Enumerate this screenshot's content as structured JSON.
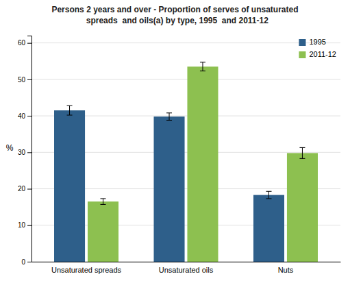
{
  "chart_data": {
    "type": "bar",
    "title": "Persons 2 years and over - Proportion of serves of unsaturated\n  spreads  and oils(a) by type, 1995  and 2011-12",
    "categories": [
      "Unsaturated spreads",
      "Unsaturated oils",
      "Nuts"
    ],
    "series": [
      {
        "name": "1995",
        "color": "#2E5F8A",
        "values": [
          41.5,
          39.8,
          18.3
        ],
        "errors": [
          1.3,
          1.0,
          1.0
        ]
      },
      {
        "name": "2011-12",
        "color": "#8DC050",
        "values": [
          16.5,
          53.5,
          29.8
        ],
        "errors": [
          0.8,
          1.2,
          1.5
        ]
      }
    ],
    "y_label": "%",
    "ylim": [
      0,
      62
    ],
    "yticks": [
      0,
      10,
      20,
      30,
      40,
      50,
      60
    ],
    "grid": true,
    "legend": "upper right"
  }
}
